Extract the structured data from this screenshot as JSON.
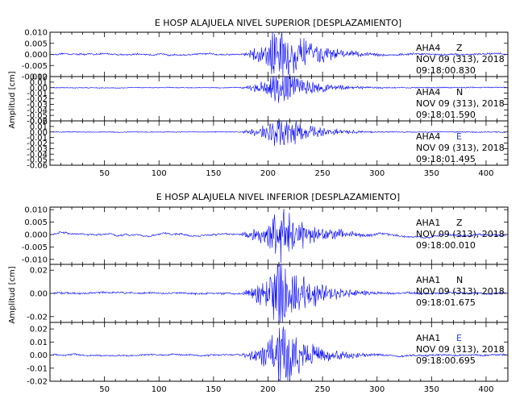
{
  "chart_data": [
    {
      "type": "line",
      "title": "E HOSP ALAJUELA NIVEL SUPERIOR [DESPLAZAMIENTO]",
      "ylabel": "Amplitud [cm]",
      "xlabel": "",
      "xlim": [
        0,
        420
      ],
      "xticks": [
        50,
        100,
        150,
        200,
        250,
        300,
        350,
        400
      ],
      "grid": false,
      "color": "#0000ff",
      "panels": [
        {
          "station": "AHA4",
          "component": "Z",
          "date": "NOV 09 (313), 2018",
          "time": "09:18:00.830",
          "ylim": [
            -0.01,
            0.01
          ],
          "yticks": [
            "0.010",
            "0.005",
            "0.000",
            "-0.005",
            "-0.010"
          ],
          "peak": 0.013,
          "noise": 0.0003
        },
        {
          "station": "AHA4",
          "component": "N",
          "date": "NOV 09 (313), 2018",
          "time": "09:18:01.590",
          "ylim": [
            -0.06,
            0.02
          ],
          "yticks": [
            "0.02",
            "0.01",
            "0.00",
            "-0.01",
            "-0.02",
            "-0.03",
            "-0.04",
            "-0.05",
            "-0.06"
          ],
          "peak": 0.03,
          "noise": 0.0004
        },
        {
          "station": "AHA4",
          "component": "E",
          "date": "NOV 09 (313), 2018",
          "time": "09:18:01.495",
          "ylim": [
            -0.06,
            0.02
          ],
          "yticks": [
            "0.02",
            "0.01",
            "0.00",
            "-0.01",
            "-0.02",
            "-0.03",
            "-0.04",
            "-0.05",
            "-0.06"
          ],
          "peak": 0.03,
          "noise": 0.0004
        }
      ]
    },
    {
      "type": "line",
      "title": "E HOSP ALAJUELA NIVEL INFERIOR [DESPLAZAMIENTO]",
      "ylabel": "Amplitud [cm]",
      "xlabel": "",
      "xlim": [
        0,
        420
      ],
      "xticks": [
        50,
        100,
        150,
        200,
        250,
        300,
        350,
        400
      ],
      "grid": false,
      "color": "#0000ff",
      "panels": [
        {
          "station": "AHA1",
          "component": "Z",
          "date": "NOV 09 (313), 2018",
          "time": "09:18:00.010",
          "ylim": [
            -0.012,
            0.011
          ],
          "yticks": [
            "0.010",
            "0.005",
            "0.000",
            "-0.005",
            "-0.010"
          ],
          "peak": 0.011,
          "noise": 0.0006
        },
        {
          "station": "AHA1",
          "component": "N",
          "date": "NOV 09 (313), 2018",
          "time": "09:18:01.675",
          "ylim": [
            -0.025,
            0.025
          ],
          "yticks": [
            "0.02",
            "0.00",
            "-0.02"
          ],
          "peak": 0.03,
          "noise": 0.0005
        },
        {
          "station": "AHA1",
          "component": "E",
          "date": "NOV 09 (313), 2018",
          "time": "09:18:00.695",
          "ylim": [
            -0.02,
            0.025
          ],
          "yticks": [
            "0.02",
            "0.01",
            "0.00",
            "-0.01",
            "-0.02"
          ],
          "peak": 0.022,
          "noise": 0.0005
        }
      ]
    }
  ]
}
